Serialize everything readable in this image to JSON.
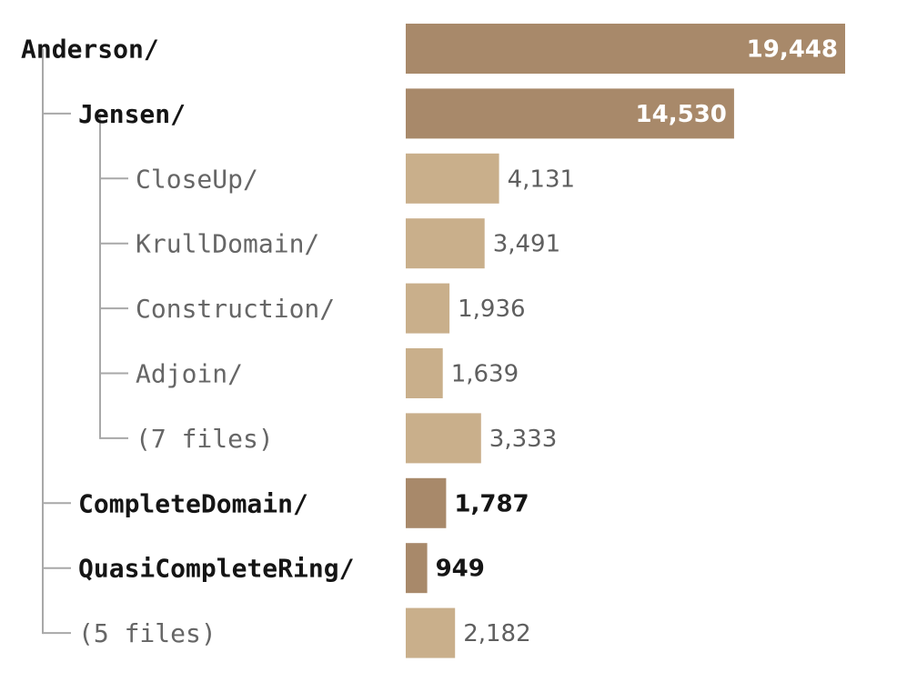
{
  "chart_data": {
    "type": "bar",
    "orientation": "horizontal",
    "title": "",
    "xlabel": "",
    "ylabel": "",
    "categories": [
      "Anderson/",
      "Jensen/",
      "CloseUp/",
      "KrullDomain/",
      "Construction/",
      "Adjoin/",
      "(7 files)",
      "CompleteDomain/",
      "QuasiCompleteRing/",
      "(5 files)"
    ],
    "values": [
      19448,
      14530,
      4131,
      3491,
      1936,
      1639,
      3333,
      1787,
      949,
      2182
    ],
    "value_labels": [
      "19,448",
      "14,530",
      "4,131",
      "3,491",
      "1,936",
      "1,639",
      "3,333",
      "1,787",
      "949",
      "2,182"
    ],
    "depth": [
      0,
      1,
      2,
      2,
      2,
      2,
      2,
      1,
      1,
      1
    ],
    "kind": [
      "folder",
      "folder",
      "folder",
      "folder",
      "folder",
      "folder",
      "files",
      "folder",
      "folder",
      "files"
    ],
    "emphasis": [
      true,
      true,
      false,
      false,
      false,
      false,
      false,
      true,
      true,
      false
    ],
    "xlim": [
      0,
      19448
    ],
    "grid": false,
    "legend": "none",
    "colors": {
      "emphasis_bar": "#a8896a",
      "normal_bar": "#c9af8b",
      "tree_line": "#a8a8a8",
      "label_bold": "#151515",
      "label_normal": "#666666",
      "value_inside": "#ffffff",
      "value_outside_bold": "#151515",
      "value_outside_normal": "#5f5f5f"
    }
  }
}
